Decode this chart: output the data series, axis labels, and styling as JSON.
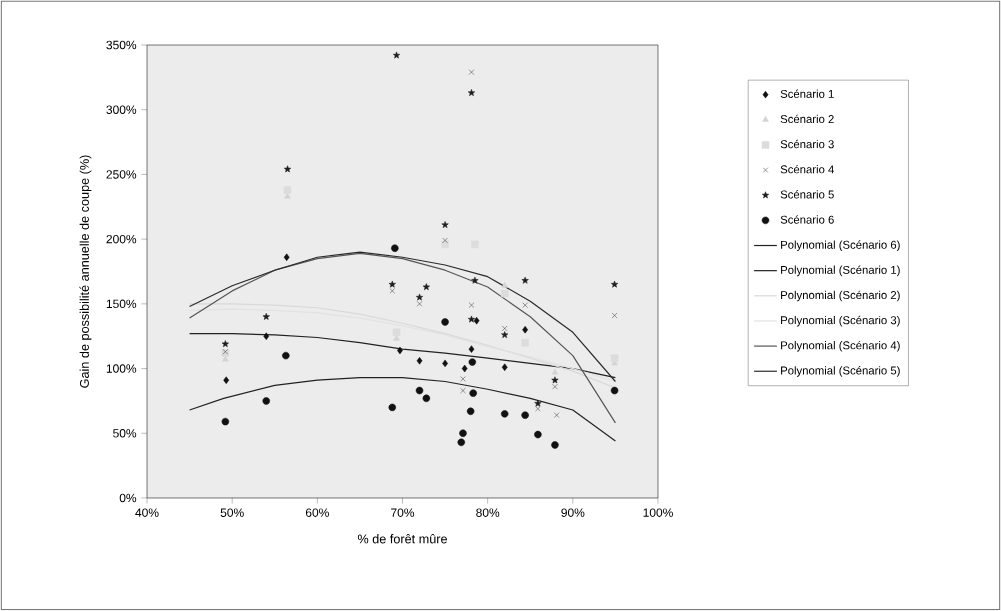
{
  "chart_data": {
    "type": "scatter",
    "xlabel": "% de forêt mûre",
    "ylabel": "Gain de possibilité annuelle de coupe (%)",
    "xlim": [
      40,
      100
    ],
    "ylim": [
      0,
      350
    ],
    "xticks": [
      {
        "value": 40,
        "label": "40%"
      },
      {
        "value": 50,
        "label": "50%"
      },
      {
        "value": 60,
        "label": "60%"
      },
      {
        "value": 70,
        "label": "70%"
      },
      {
        "value": 80,
        "label": "80%"
      },
      {
        "value": 90,
        "label": "90%"
      },
      {
        "value": 100,
        "label": "100%"
      }
    ],
    "yticks": [
      {
        "value": 0,
        "label": "0%"
      },
      {
        "value": 50,
        "label": "50%"
      },
      {
        "value": 100,
        "label": "100%"
      },
      {
        "value": 150,
        "label": "150%"
      },
      {
        "value": 200,
        "label": "200%"
      },
      {
        "value": 250,
        "label": "250%"
      },
      {
        "value": 300,
        "label": "300%"
      },
      {
        "value": 350,
        "label": "350%"
      }
    ],
    "grid": false,
    "legend": "right",
    "series": [
      {
        "name": "Scénario 1",
        "color": "#111111",
        "marker": "diamond",
        "x": [
          49.3,
          54.0,
          56.4,
          69.7,
          72.0,
          75.0,
          77.3,
          78.1,
          78.7,
          82.0,
          84.4
        ],
        "values": [
          91,
          125,
          186,
          114,
          106,
          104,
          100,
          115,
          137,
          101,
          130
        ]
      },
      {
        "name": "Scénario 2",
        "color": "#d4d4d4",
        "marker": "triangle",
        "x": [
          49.2,
          56.5,
          69.3,
          78.5,
          82.0,
          84.4,
          87.9,
          94.9
        ],
        "values": [
          107,
          233,
          123,
          null,
          164,
          null,
          97,
          104
        ]
      },
      {
        "name": "Scénario 3",
        "color": "#dcdcdc",
        "marker": "square",
        "x": [
          49.2,
          56.5,
          69.3,
          75.0,
          78.5,
          82.0,
          84.4,
          94.9
        ],
        "values": [
          112,
          238,
          128,
          196,
          196,
          158,
          120,
          108
        ]
      },
      {
        "name": "Scénario 4",
        "color": "#3a3a3a",
        "marker": "cross",
        "x": [
          49.2,
          68.8,
          72.0,
          75.0,
          77.1,
          77.1,
          78.1,
          78.1,
          82.0,
          84.4,
          85.9,
          87.9,
          88.1,
          94.9
        ],
        "values": [
          113,
          160,
          150,
          199,
          92,
          83,
          329,
          149,
          131,
          149,
          69,
          86,
          64,
          141
        ]
      },
      {
        "name": "Scénario 5",
        "color": "#1e1e1e",
        "marker": "star",
        "x": [
          49.2,
          54.0,
          56.5,
          68.8,
          69.3,
          72.0,
          72.8,
          75.0,
          78.1,
          78.1,
          78.5,
          82.0,
          84.4,
          85.9,
          87.9,
          94.9
        ],
        "values": [
          119,
          140,
          254,
          165,
          342,
          155,
          163,
          211,
          313,
          138,
          168,
          126,
          168,
          73,
          91,
          165
        ]
      },
      {
        "name": "Scénario 6",
        "color": "#111111",
        "marker": "circle",
        "x": [
          49.2,
          54.0,
          56.3,
          68.8,
          69.1,
          72.0,
          72.8,
          75.0,
          76.9,
          77.1,
          78.0,
          78.2,
          78.3,
          82.0,
          84.4,
          85.9,
          87.9,
          94.9
        ],
        "values": [
          59,
          75,
          110,
          70,
          193,
          83,
          77,
          136,
          43,
          50,
          67,
          105,
          81,
          65,
          64,
          49,
          41,
          83
        ]
      },
      {
        "name": "Polynomial (Scénario 6)",
        "type": "line",
        "color": "#222222",
        "marker": "none",
        "x": [
          45,
          49,
          55,
          60,
          65,
          70,
          75,
          80,
          85,
          90,
          95
        ],
        "values": [
          68,
          77,
          87,
          91,
          93,
          93,
          90,
          84,
          77,
          68,
          44
        ]
      },
      {
        "name": "Polynomial (Scénario 1)",
        "type": "line",
        "color": "#222222",
        "marker": "none",
        "x": [
          45,
          50,
          55,
          60,
          65,
          70,
          75,
          80,
          85,
          90,
          95
        ],
        "values": [
          127,
          127,
          126,
          124,
          120,
          115,
          112,
          108,
          104,
          100,
          93
        ]
      },
      {
        "name": "Polynomial (Scénario 2)",
        "type": "line",
        "color": "#d8d8d8",
        "marker": "none",
        "x": [
          45,
          50,
          55,
          60,
          65,
          70,
          75,
          80,
          85,
          90,
          95
        ],
        "values": [
          150,
          150,
          149,
          147,
          142,
          135,
          127,
          118,
          108,
          98,
          85
        ]
      },
      {
        "name": "Polynomial (Scénario 3)",
        "type": "line",
        "color": "#e2e2e2",
        "marker": "none",
        "x": [
          45,
          50,
          55,
          60,
          65,
          70,
          75,
          80,
          85,
          90,
          95
        ],
        "values": [
          145,
          146,
          145,
          143,
          139,
          133,
          126,
          117,
          109,
          100,
          90
        ]
      },
      {
        "name": "Polynomial (Scénario 4)",
        "type": "line",
        "color": "#555555",
        "marker": "none",
        "x": [
          45,
          50,
          55,
          60,
          65,
          70,
          75,
          80,
          85,
          90,
          95
        ],
        "values": [
          139,
          160,
          176,
          185,
          189,
          185,
          176,
          163,
          140,
          110,
          58
        ]
      },
      {
        "name": "Polynomial (Scénario 5)",
        "type": "line",
        "color": "#2a2a2a",
        "marker": "none",
        "x": [
          45,
          50,
          55,
          60,
          65,
          70,
          75,
          80,
          85,
          90,
          95
        ],
        "values": [
          148,
          164,
          176,
          186,
          190,
          186,
          180,
          171,
          152,
          128,
          90
        ]
      }
    ]
  }
}
